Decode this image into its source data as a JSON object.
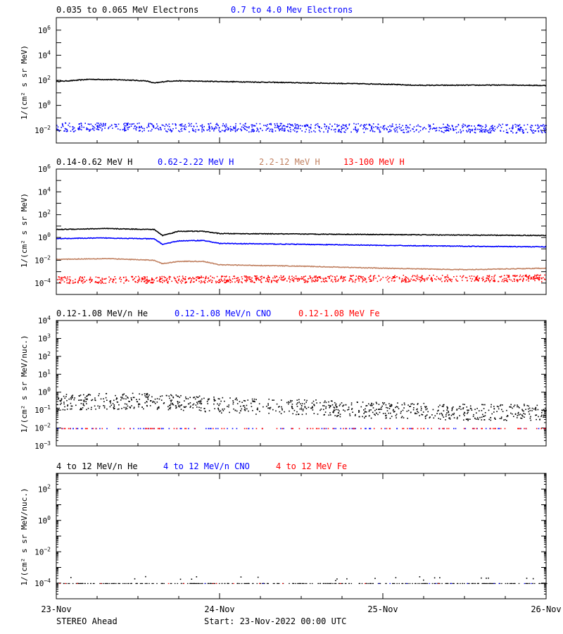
{
  "colors": {
    "black": "#000000",
    "blue": "#0000ff",
    "tan": "#c08060",
    "red": "#ff0000"
  },
  "x_axis": {
    "range": [
      "23-Nov-2022 00:00",
      "26-Nov-2022 00:00"
    ],
    "tick_labels": [
      "23-Nov",
      "24-Nov",
      "25-Nov",
      "26-Nov"
    ],
    "tick_days": [
      0,
      1,
      2,
      3
    ],
    "minor_ticks_per_day": 4
  },
  "footer": {
    "left": "STEREO Ahead",
    "center": "Start: 23-Nov-2022 00:00 UTC"
  },
  "chart_data": [
    {
      "type": "scatter",
      "yscale": "log",
      "ylim": [
        0.001,
        10000000
      ],
      "ylabel": "1/(cm² s sr MeV)",
      "ytick_exponents": [
        -2,
        0,
        2,
        4,
        6
      ],
      "legend": [
        {
          "label": "0.035 to 0.065 MeV Electrons",
          "color": "black"
        },
        {
          "label": "0.7 to 4.0 Mev Electrons",
          "color": "blue"
        }
      ],
      "series": [
        {
          "name": "0.035 to 0.065 MeV Electrons",
          "color": "black",
          "style": "line",
          "days": [
            0,
            0.1,
            0.2,
            0.4,
            0.55,
            0.6,
            0.68,
            0.75,
            1.0,
            1.3,
            1.6,
            2.0,
            2.2,
            2.4,
            2.8,
            3.0
          ],
          "values": [
            80,
            95,
            120,
            110,
            90,
            60,
            85,
            90,
            80,
            70,
            60,
            50,
            40,
            40,
            42,
            38
          ]
        },
        {
          "name": "0.7 to 4.0 Mev Electrons",
          "color": "blue",
          "style": "scatter",
          "days": [
            0,
            1.5,
            3.0
          ],
          "values": [
            0.02,
            0.018,
            0.015
          ],
          "scatter": 0.35
        }
      ]
    },
    {
      "type": "scatter",
      "yscale": "log",
      "ylim": [
        1e-05,
        1000000
      ],
      "ylabel": "1/(cm² s sr MeV)",
      "ytick_exponents": [
        -4,
        -2,
        0,
        2,
        4,
        6
      ],
      "legend": [
        {
          "label": "0.14-0.62 MeV H",
          "color": "black"
        },
        {
          "label": "0.62-2.22 MeV H",
          "color": "blue"
        },
        {
          "label": "2.2-12 MeV H",
          "color": "tan"
        },
        {
          "label": "13-100 MeV H",
          "color": "red"
        }
      ],
      "series": [
        {
          "name": "0.14-0.62 MeV H",
          "color": "black",
          "style": "line",
          "days": [
            0,
            0.3,
            0.6,
            0.65,
            0.75,
            0.9,
            1.0,
            1.5,
            2.0,
            2.5,
            3.0
          ],
          "values": [
            5,
            6,
            5,
            1.5,
            3.5,
            3.5,
            2.2,
            2,
            1.8,
            1.6,
            1.5
          ]
        },
        {
          "name": "0.62-2.22 MeV H",
          "color": "blue",
          "style": "line",
          "days": [
            0,
            0.3,
            0.6,
            0.65,
            0.75,
            0.9,
            1.0,
            1.5,
            2.0,
            2.5,
            3.0
          ],
          "values": [
            0.8,
            0.9,
            0.75,
            0.25,
            0.5,
            0.55,
            0.3,
            0.25,
            0.2,
            0.17,
            0.15
          ]
        },
        {
          "name": "2.2-12 MeV H",
          "color": "tan",
          "style": "line",
          "days": [
            0,
            0.3,
            0.6,
            0.65,
            0.75,
            0.9,
            1.0,
            1.5,
            2.0,
            2.5,
            3.0
          ],
          "values": [
            0.012,
            0.014,
            0.01,
            0.005,
            0.008,
            0.008,
            0.004,
            0.003,
            0.002,
            0.0015,
            0.002
          ]
        },
        {
          "name": "13-100 MeV H",
          "color": "red",
          "style": "scatter",
          "days": [
            0,
            1.5,
            3.0
          ],
          "values": [
            0.0002,
            0.00025,
            0.0003
          ],
          "scatter": 0.3
        }
      ]
    },
    {
      "type": "scatter",
      "yscale": "log",
      "ylim": [
        0.001,
        10000
      ],
      "ylabel": "1/(cm² s sr MeV/nuc.)",
      "ytick_exponents": [
        -3,
        -2,
        -1,
        0,
        1,
        2,
        3,
        4
      ],
      "legend": [
        {
          "label": "0.12-1.08 MeV/n He",
          "color": "black"
        },
        {
          "label": "0.12-1.08 MeV/n CNO",
          "color": "blue"
        },
        {
          "label": "0.12-1.08 MeV Fe",
          "color": "red"
        }
      ],
      "series": [
        {
          "name": "0.12-1.08 MeV/n He",
          "color": "black",
          "style": "scatter",
          "days": [
            0,
            0.5,
            1.0,
            1.5,
            2.0,
            2.5,
            3.0
          ],
          "values": [
            0.3,
            0.35,
            0.2,
            0.15,
            0.1,
            0.08,
            0.08
          ],
          "scatter": 0.45
        },
        {
          "name": "0.12-1.08 MeV/n CNO",
          "color": "blue",
          "style": "sparse",
          "days": [
            0,
            3.0
          ],
          "values": [
            0.01,
            0.01
          ]
        },
        {
          "name": "0.12-1.08 MeV Fe",
          "color": "red",
          "style": "sparse",
          "days": [
            0,
            3.0
          ],
          "values": [
            0.01,
            0.01
          ]
        }
      ]
    },
    {
      "type": "scatter",
      "yscale": "log",
      "ylim": [
        1e-05,
        1000
      ],
      "ylabel": "1/(cm² s sr MeV/nuc.)",
      "ytick_exponents": [
        -4,
        -2,
        0,
        2
      ],
      "legend": [
        {
          "label": "4 to 12 MeV/n He",
          "color": "black"
        },
        {
          "label": "4 to 12 MeV/n CNO",
          "color": "blue"
        },
        {
          "label": "4 to 12 MeV Fe",
          "color": "red"
        }
      ],
      "series": [
        {
          "name": "4 to 12 MeV/n He",
          "color": "black",
          "style": "floor",
          "days": [
            0,
            3.0
          ],
          "values": [
            0.0001,
            0.0001
          ]
        },
        {
          "name": "4 to 12 MeV/n CNO",
          "color": "blue",
          "style": "rare",
          "days": [
            0,
            3.0
          ],
          "values": [
            0.0001,
            0.0001
          ]
        },
        {
          "name": "4 to 12 MeV Fe",
          "color": "red",
          "style": "rare",
          "days": [
            0,
            3.0
          ],
          "values": [
            0.0001,
            0.0001
          ]
        }
      ]
    }
  ]
}
